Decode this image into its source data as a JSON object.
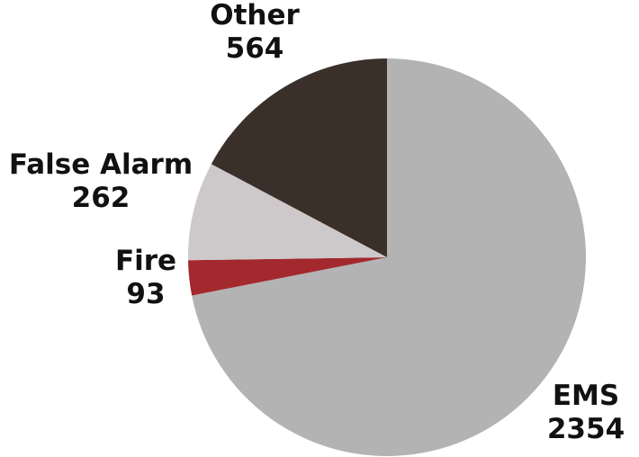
{
  "chart_data": {
    "type": "pie",
    "title": "",
    "slices": [
      {
        "label": "EMS",
        "value": 2354,
        "color": "#b3b3b3"
      },
      {
        "label": "Fire",
        "value": 93,
        "color": "#a3292e"
      },
      {
        "label": "False Alarm",
        "value": 262,
        "color": "#cdc9ca"
      },
      {
        "label": "Other",
        "value": 564,
        "color": "#3b2f2a"
      }
    ],
    "start": "12 o'clock",
    "direction": "clockwise",
    "legend": "none",
    "data_labels": "category and value outside slices"
  }
}
